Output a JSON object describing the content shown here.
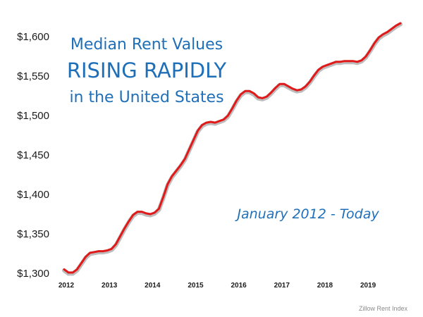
{
  "chart_data": {
    "type": "line",
    "title_lines": [
      "Median Rent Values",
      "RISING RAPIDLY",
      "in the United States"
    ],
    "subtitle": "January 2012 - Today",
    "source": "Zillow Rent Index",
    "xlabel": "",
    "ylabel": "",
    "xlim": [
      2012.0,
      2019.8
    ],
    "ylim": [
      1300,
      1600
    ],
    "x_ticks": [
      "2012",
      "2013",
      "2014",
      "2015",
      "2016",
      "2017",
      "2018",
      "2019"
    ],
    "y_ticks": [
      "$1,300",
      "$1,350",
      "$1,400",
      "$1,450",
      "$1,500",
      "$1,550",
      "$1,600"
    ],
    "y_tick_values": [
      1300,
      1350,
      1400,
      1450,
      1500,
      1550,
      1600
    ],
    "grid": false,
    "series": [
      {
        "color": "#e01a1a",
        "x": [
          2012.0,
          2012.1,
          2012.2,
          2012.3,
          2012.4,
          2012.5,
          2012.6,
          2012.7,
          2012.8,
          2012.9,
          2013.0,
          2013.1,
          2013.2,
          2013.3,
          2013.4,
          2013.5,
          2013.6,
          2013.7,
          2013.8,
          2013.9,
          2014.0,
          2014.1,
          2014.2,
          2014.3,
          2014.4,
          2014.5,
          2014.6,
          2014.7,
          2014.8,
          2014.9,
          2015.0,
          2015.1,
          2015.2,
          2015.3,
          2015.4,
          2015.5,
          2015.6,
          2015.7,
          2015.8,
          2015.9,
          2016.0,
          2016.1,
          2016.2,
          2016.3,
          2016.4,
          2016.5,
          2016.6,
          2016.7,
          2016.8,
          2016.9,
          2017.0,
          2017.1,
          2017.2,
          2017.3,
          2017.4,
          2017.5,
          2017.6,
          2017.7,
          2017.8,
          2017.9,
          2018.0,
          2018.1,
          2018.2,
          2018.3,
          2018.4,
          2018.5,
          2018.6,
          2018.7,
          2018.8,
          2018.9,
          2019.0,
          2019.1,
          2019.2,
          2019.3,
          2019.4,
          2019.5,
          2019.6,
          2019.7,
          2019.8
        ],
        "values": [
          1305,
          1301,
          1301,
          1305,
          1313,
          1321,
          1326,
          1327,
          1328,
          1328,
          1329,
          1331,
          1337,
          1347,
          1357,
          1366,
          1374,
          1378,
          1378,
          1376,
          1375,
          1377,
          1382,
          1397,
          1413,
          1423,
          1430,
          1437,
          1445,
          1457,
          1469,
          1481,
          1488,
          1491,
          1492,
          1491,
          1493,
          1495,
          1500,
          1509,
          1519,
          1527,
          1531,
          1531,
          1528,
          1523,
          1522,
          1524,
          1529,
          1535,
          1540,
          1540,
          1537,
          1534,
          1532,
          1533,
          1537,
          1543,
          1551,
          1558,
          1562,
          1564,
          1566,
          1568,
          1568,
          1569,
          1569,
          1569,
          1568,
          1570,
          1575,
          1583,
          1592,
          1599,
          1603,
          1606,
          1610,
          1614,
          1617
        ]
      }
    ]
  }
}
